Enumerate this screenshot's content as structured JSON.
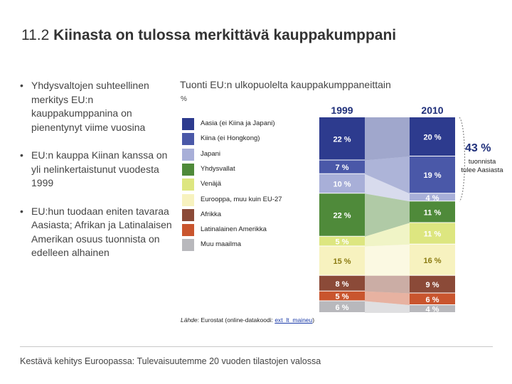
{
  "title": {
    "number": "11.2",
    "text": "Kiinasta on tulossa merkittävä kauppakumppani"
  },
  "bullets": [
    "Yhdysvaltojen suhteellinen merkitys EU:n kauppakumppanina on pienentynyt viime vuosina",
    "EU:n kauppa Kiinan kanssa on yli nelinkertaistunut vuodesta 1999",
    "EU:hun tuodaan eniten tavaraa Aasiasta; Afrikan ja Latinalaisen Amerikan osuus tuonnista on edelleen alhainen"
  ],
  "chart_title": "Tuonti EU:n ulkopuolelta kauppakumppaneittain",
  "unit": "%",
  "chart_data": {
    "type": "bar",
    "stacked": true,
    "categories": [
      "1999",
      "2010"
    ],
    "series": [
      {
        "name": "Aasia (ei Kiina ja Japani)",
        "color": "#2d3b8e",
        "values": [
          22,
          20
        ],
        "labels": [
          "22 %",
          "20 %"
        ],
        "label_color": "#ffffff"
      },
      {
        "name": "Kiina (ei Hongkong)",
        "color": "#4a58a8",
        "values": [
          7,
          19
        ],
        "labels": [
          "7 %",
          "19 %"
        ],
        "label_color": "#ffffff"
      },
      {
        "name": "Japani",
        "color": "#a8afd8",
        "values": [
          10,
          4
        ],
        "labels": [
          "10 %",
          "4 %"
        ],
        "label_color": "#ffffff"
      },
      {
        "name": "Yhdysvallat",
        "color": "#4f8a3a",
        "values": [
          22,
          11
        ],
        "labels": [
          "22 %",
          "11 %"
        ],
        "label_color": "#ffffff"
      },
      {
        "name": "Venäjä",
        "color": "#dde680",
        "values": [
          5,
          11
        ],
        "labels": [
          "5 %",
          "11 %"
        ],
        "label_color": "#ffffff"
      },
      {
        "name": "Eurooppa, muu kuin EU-27",
        "color": "#f7f2bf",
        "values": [
          15,
          16
        ],
        "labels": [
          "15 %",
          "16 %"
        ],
        "label_color": "#8a7a10"
      },
      {
        "name": "Afrikka",
        "color": "#8b4a38",
        "values": [
          8,
          9
        ],
        "labels": [
          "8 %",
          "9 %"
        ],
        "label_color": "#ffffff"
      },
      {
        "name": "Latinalainen Amerikka",
        "color": "#c9552e",
        "values": [
          5,
          6
        ],
        "labels": [
          "5 %",
          "6 %"
        ],
        "label_color": "#ffffff"
      },
      {
        "name": "Muu maailma",
        "color": "#b8b8bc",
        "values": [
          6,
          4
        ],
        "labels": [
          "6 %",
          "4 %"
        ],
        "label_color": "#ffffff"
      }
    ],
    "annotation": {
      "value": "43 %",
      "text": "tuonnista tulee Aasiasta"
    }
  },
  "source": {
    "prefix": "Lähde",
    "text": ": Eurostat (online-datakoodi: ",
    "code": "ext_lt_maineu",
    "suffix": ")"
  },
  "footer": "Kestävä kehitys Euroopassa: Tulevaisuutemme 20 vuoden tilastojen valossa"
}
